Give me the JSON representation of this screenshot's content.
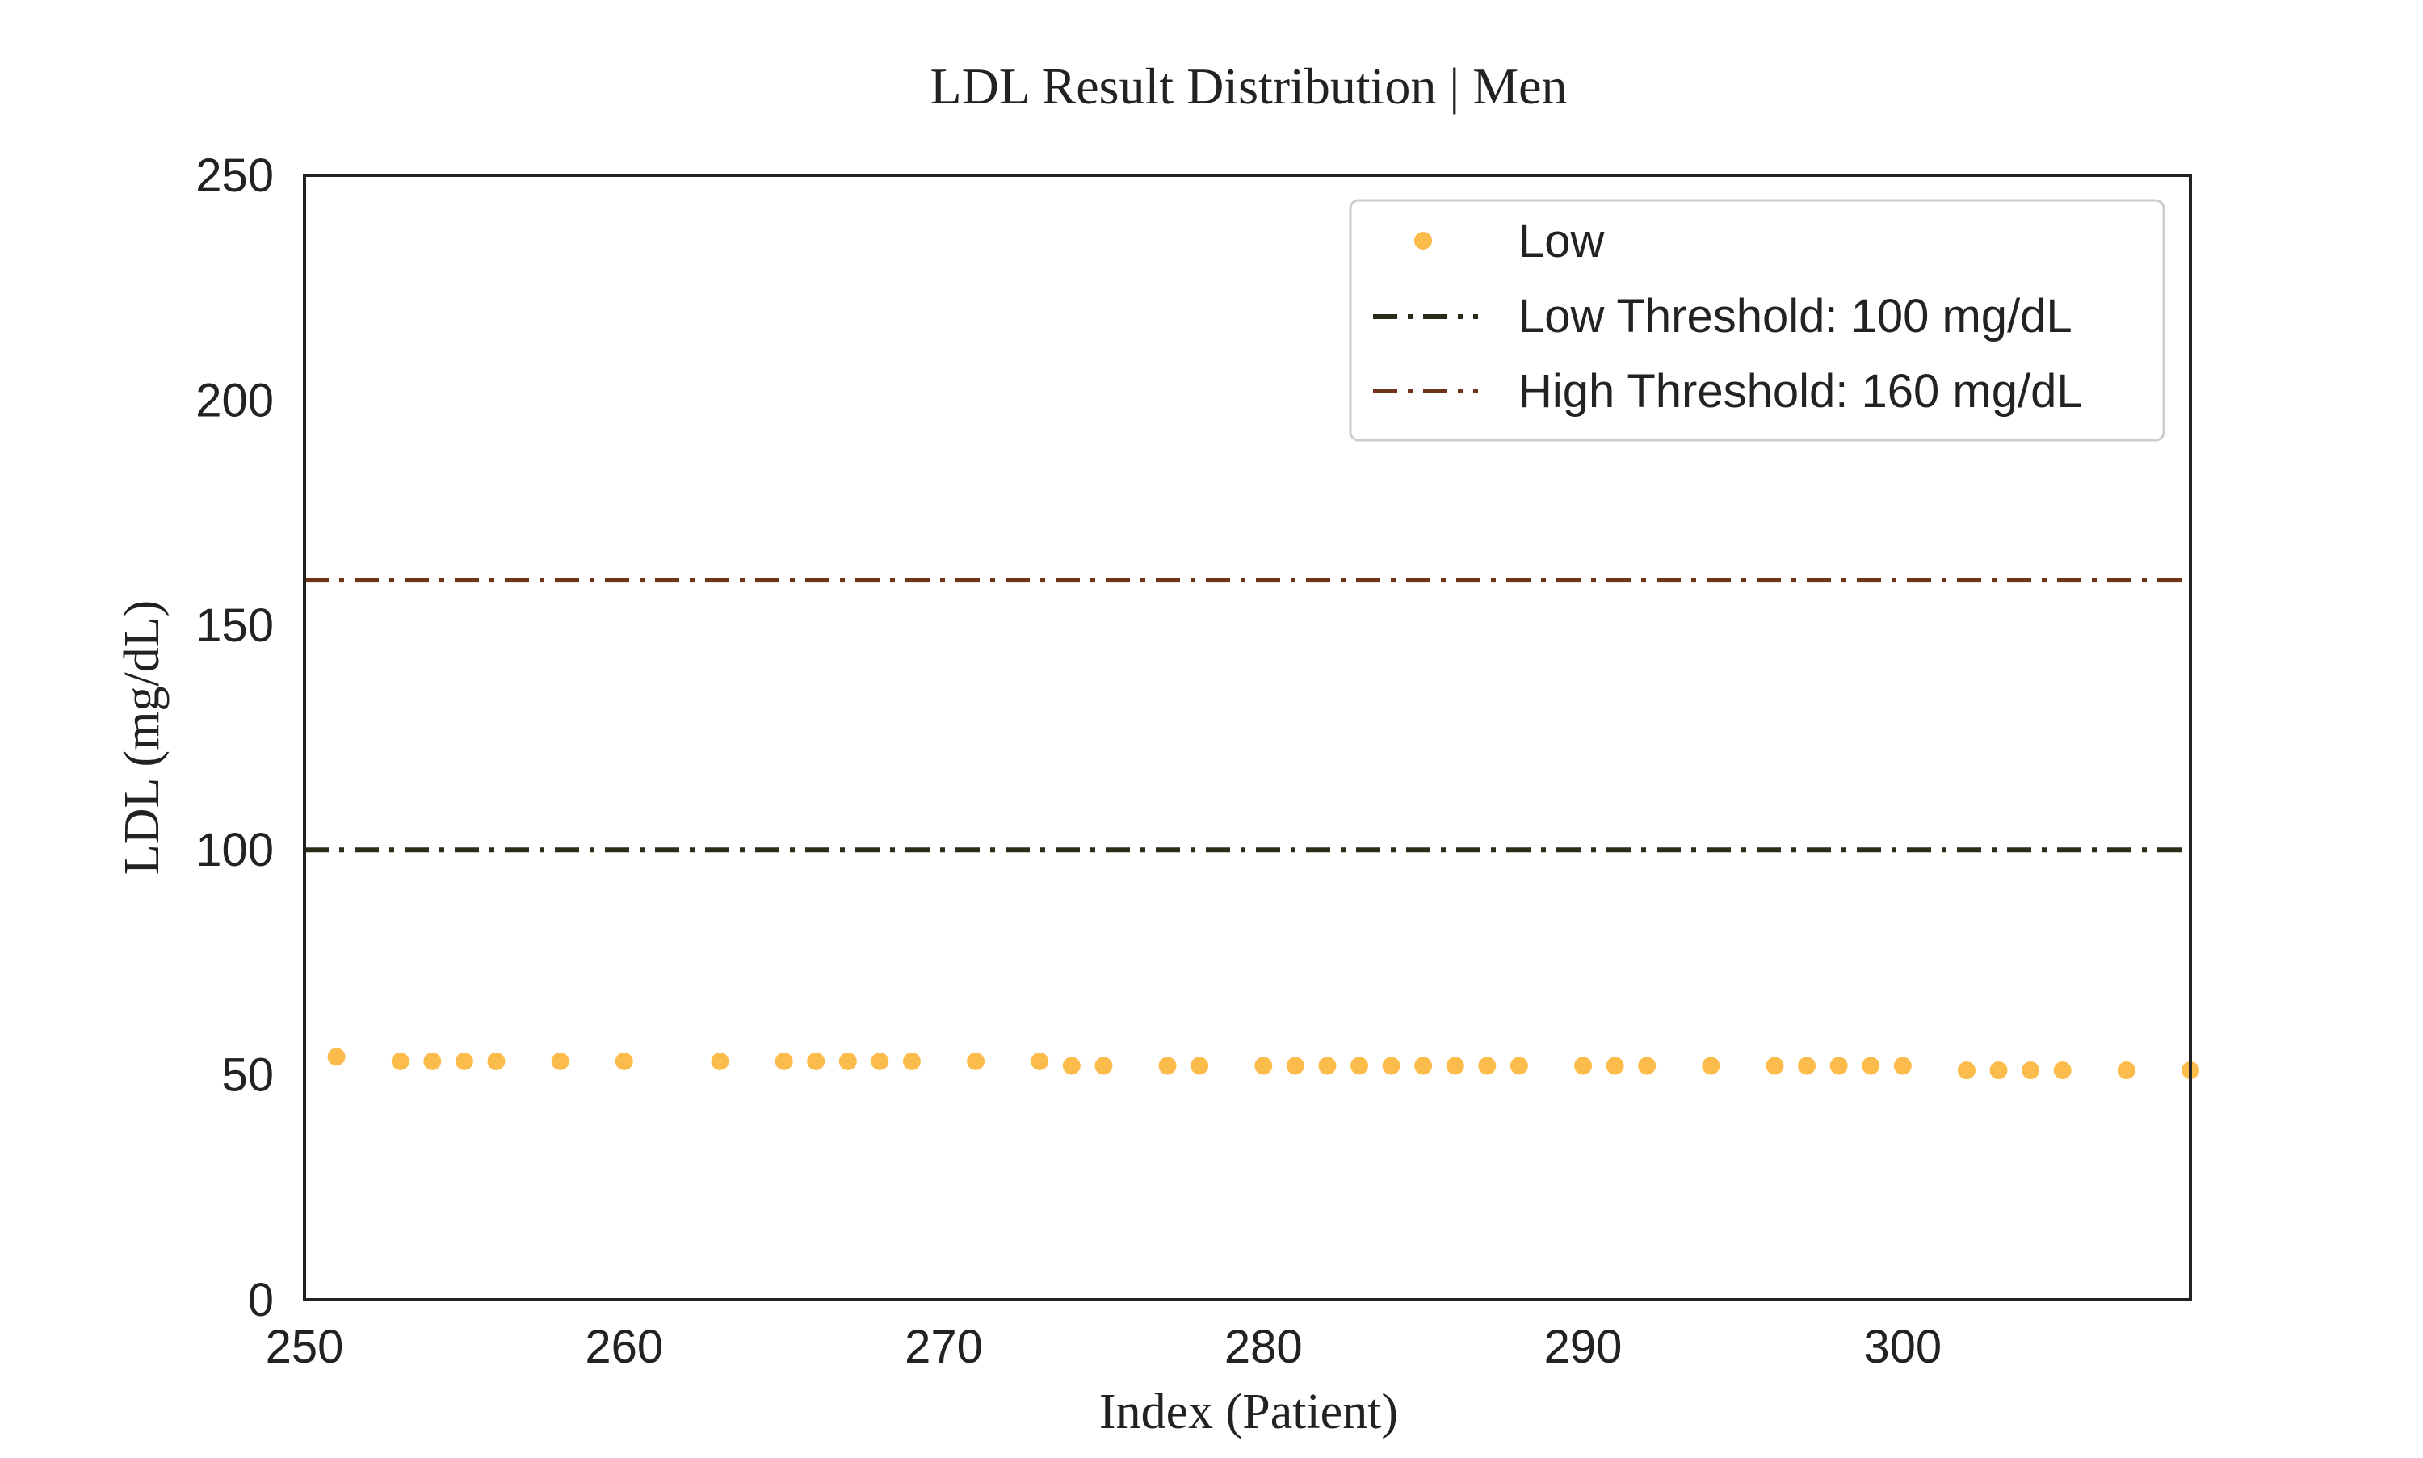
{
  "chart_data": {
    "type": "scatter",
    "title": "LDL Result Distribution | Men",
    "xlabel": "Index (Patient)",
    "ylabel": "LDL (mg/dL)",
    "xlim": [
      250,
      309
    ],
    "ylim": [
      0,
      250
    ],
    "xticks": [
      250,
      260,
      270,
      280,
      290,
      300
    ],
    "yticks": [
      0,
      50,
      100,
      150,
      200,
      250
    ],
    "grid": false,
    "legend_position": "top-right",
    "series": [
      {
        "name": "Low",
        "color": "#fcbc4c",
        "points": [
          {
            "x": 251,
            "y": 54
          },
          {
            "x": 253,
            "y": 53
          },
          {
            "x": 254,
            "y": 53
          },
          {
            "x": 255,
            "y": 53
          },
          {
            "x": 256,
            "y": 53
          },
          {
            "x": 258,
            "y": 53
          },
          {
            "x": 260,
            "y": 53
          },
          {
            "x": 263,
            "y": 53
          },
          {
            "x": 265,
            "y": 53
          },
          {
            "x": 266,
            "y": 53
          },
          {
            "x": 267,
            "y": 53
          },
          {
            "x": 268,
            "y": 53
          },
          {
            "x": 269,
            "y": 53
          },
          {
            "x": 271,
            "y": 53
          },
          {
            "x": 273,
            "y": 53
          },
          {
            "x": 274,
            "y": 52
          },
          {
            "x": 275,
            "y": 52
          },
          {
            "x": 277,
            "y": 52
          },
          {
            "x": 278,
            "y": 52
          },
          {
            "x": 280,
            "y": 52
          },
          {
            "x": 281,
            "y": 52
          },
          {
            "x": 282,
            "y": 52
          },
          {
            "x": 283,
            "y": 52
          },
          {
            "x": 284,
            "y": 52
          },
          {
            "x": 285,
            "y": 52
          },
          {
            "x": 286,
            "y": 52
          },
          {
            "x": 287,
            "y": 52
          },
          {
            "x": 288,
            "y": 52
          },
          {
            "x": 290,
            "y": 52
          },
          {
            "x": 291,
            "y": 52
          },
          {
            "x": 292,
            "y": 52
          },
          {
            "x": 294,
            "y": 52
          },
          {
            "x": 296,
            "y": 52
          },
          {
            "x": 297,
            "y": 52
          },
          {
            "x": 298,
            "y": 52
          },
          {
            "x": 299,
            "y": 52
          },
          {
            "x": 300,
            "y": 52
          },
          {
            "x": 302,
            "y": 51
          },
          {
            "x": 303,
            "y": 51
          },
          {
            "x": 304,
            "y": 51
          },
          {
            "x": 305,
            "y": 51
          },
          {
            "x": 307,
            "y": 51
          },
          {
            "x": 309,
            "y": 51
          }
        ]
      }
    ],
    "thresholds": [
      {
        "name": "Low Threshold: 100 mg/dL",
        "value": 100,
        "color": "#2b2b18"
      },
      {
        "name": "High Threshold: 160 mg/dL",
        "value": 160,
        "color": "#6e3418"
      }
    ]
  }
}
